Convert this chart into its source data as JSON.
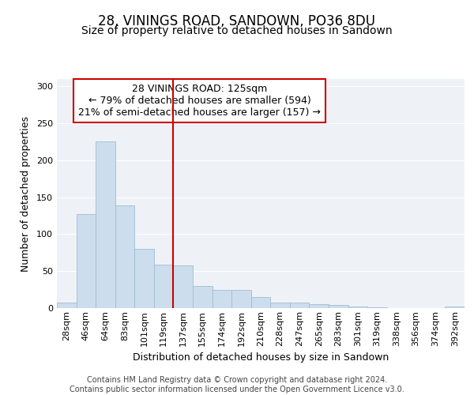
{
  "title": "28, VININGS ROAD, SANDOWN, PO36 8DU",
  "subtitle": "Size of property relative to detached houses in Sandown",
  "xlabel": "Distribution of detached houses by size in Sandown",
  "ylabel": "Number of detached properties",
  "categories": [
    "28sqm",
    "46sqm",
    "64sqm",
    "83sqm",
    "101sqm",
    "119sqm",
    "137sqm",
    "155sqm",
    "174sqm",
    "192sqm",
    "210sqm",
    "228sqm",
    "247sqm",
    "265sqm",
    "283sqm",
    "301sqm",
    "319sqm",
    "338sqm",
    "356sqm",
    "374sqm",
    "392sqm"
  ],
  "values": [
    8,
    127,
    226,
    139,
    80,
    59,
    58,
    30,
    25,
    25,
    15,
    8,
    8,
    5,
    4,
    2,
    1,
    0,
    0,
    0,
    2
  ],
  "bar_color": "#ccdded",
  "bar_edge_color": "#a0bdd0",
  "vline_x": 5.5,
  "vline_color": "#cc0000",
  "annotation_text": "28 VININGS ROAD: 125sqm\n← 79% of detached houses are smaller (594)\n21% of semi-detached houses are larger (157) →",
  "annotation_box_color": "#cc0000",
  "ylim": [
    0,
    310
  ],
  "yticks": [
    0,
    50,
    100,
    150,
    200,
    250,
    300
  ],
  "plot_bg_color": "#eef2f7",
  "footer_text": "Contains HM Land Registry data © Crown copyright and database right 2024.\nContains public sector information licensed under the Open Government Licence v3.0.",
  "title_fontsize": 12,
  "subtitle_fontsize": 10,
  "axis_label_fontsize": 9,
  "tick_fontsize": 8,
  "annotation_fontsize": 9,
  "footer_fontsize": 7
}
